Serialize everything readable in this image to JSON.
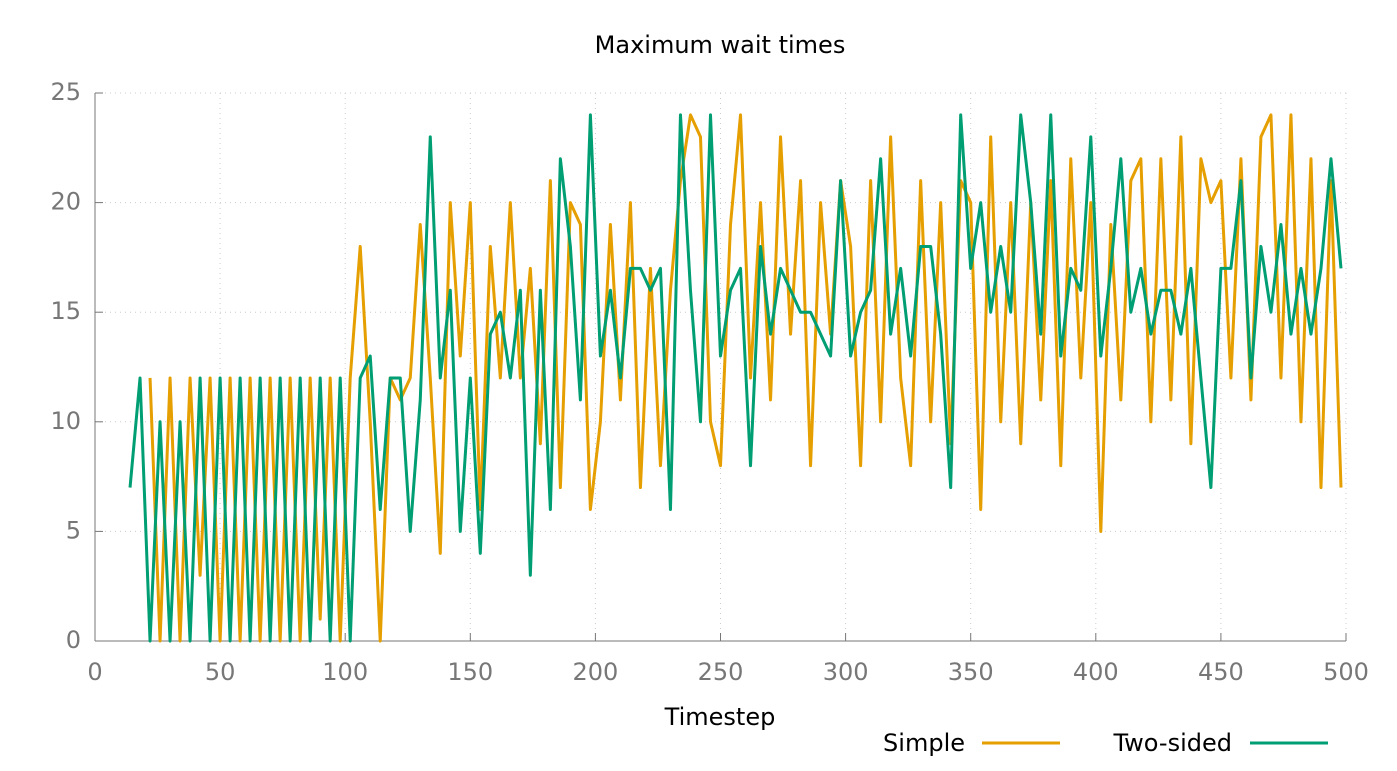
{
  "chart_data": {
    "type": "line",
    "title": "Maximum wait times",
    "xlabel": "Timestep",
    "x": [
      14,
      18,
      22,
      26,
      30,
      34,
      38,
      42,
      46,
      50,
      54,
      58,
      62,
      66,
      70,
      74,
      78,
      82,
      86,
      90,
      94,
      98,
      102,
      106,
      110,
      114,
      118,
      122,
      126,
      130,
      134,
      138,
      142,
      146,
      150,
      154,
      158,
      162,
      166,
      170,
      174,
      178,
      182,
      186,
      190,
      194,
      198,
      202,
      206,
      210,
      214,
      218,
      222,
      226,
      230,
      234,
      238,
      242,
      246,
      250,
      254,
      258,
      262,
      266,
      270,
      274,
      278,
      282,
      286,
      290,
      294,
      298,
      302,
      306,
      310,
      314,
      318,
      322,
      326,
      330,
      334,
      338,
      342,
      346,
      350,
      354,
      358,
      362,
      366,
      370,
      374,
      378,
      382,
      386,
      390,
      394,
      398,
      402,
      406,
      410,
      414,
      418,
      422,
      426,
      430,
      434,
      438,
      442,
      446,
      450,
      454,
      458,
      462,
      466,
      470,
      474,
      478,
      482,
      486,
      490,
      494,
      498
    ],
    "series": [
      {
        "name": "Simple",
        "color": "#e69f00",
        "values": [
          null,
          null,
          12,
          0,
          12,
          0,
          12,
          3,
          12,
          0,
          12,
          0,
          12,
          0,
          12,
          0,
          12,
          0,
          12,
          1,
          12,
          0,
          12,
          18,
          10,
          0,
          12,
          11,
          12,
          19,
          12,
          4,
          20,
          13,
          20,
          6,
          18,
          12,
          20,
          12,
          17,
          9,
          21,
          7,
          20,
          19,
          6,
          10,
          19,
          11,
          20,
          7,
          17,
          8,
          16,
          21,
          24,
          23,
          10,
          8,
          19,
          24,
          12,
          20,
          11,
          23,
          14,
          21,
          8,
          20,
          14,
          21,
          18,
          8,
          21,
          10,
          23,
          12,
          8,
          21,
          10,
          20,
          9,
          21,
          20,
          6,
          23,
          10,
          20,
          9,
          20,
          11,
          21,
          8,
          22,
          12,
          20,
          5,
          19,
          11,
          21,
          22,
          10,
          22,
          11,
          23,
          9,
          22,
          20,
          21,
          12,
          22,
          11,
          23,
          24,
          12,
          24,
          10,
          22,
          7,
          21,
          7
        ]
      },
      {
        "name": "Two-sided",
        "color": "#009e73",
        "values": [
          7,
          12,
          0,
          10,
          0,
          10,
          0,
          12,
          0,
          12,
          0,
          12,
          0,
          12,
          0,
          12,
          0,
          12,
          0,
          12,
          0,
          12,
          0,
          12,
          13,
          6,
          12,
          12,
          5,
          11,
          23,
          12,
          16,
          5,
          12,
          4,
          14,
          15,
          12,
          16,
          3,
          16,
          6,
          22,
          18,
          11,
          24,
          13,
          16,
          12,
          17,
          17,
          16,
          17,
          6,
          24,
          16,
          10,
          24,
          13,
          16,
          17,
          8,
          18,
          14,
          17,
          16,
          15,
          15,
          14,
          13,
          21,
          13,
          15,
          16,
          22,
          14,
          17,
          13,
          18,
          18,
          14,
          7,
          24,
          17,
          20,
          15,
          18,
          15,
          24,
          20,
          14,
          24,
          13,
          17,
          16,
          23,
          13,
          17,
          22,
          15,
          17,
          14,
          16,
          16,
          14,
          17,
          12,
          7,
          17,
          17,
          21,
          12,
          18,
          15,
          19,
          14,
          17,
          14,
          17,
          22,
          17
        ]
      }
    ],
    "xlim": [
      0,
      500
    ],
    "xticks": [
      0,
      50,
      100,
      150,
      200,
      250,
      300,
      350,
      400,
      450,
      500
    ],
    "ylim": [
      0,
      25
    ],
    "yticks": [
      0,
      5,
      10,
      15,
      20,
      25
    ],
    "grid": true,
    "legend": "bottom"
  }
}
